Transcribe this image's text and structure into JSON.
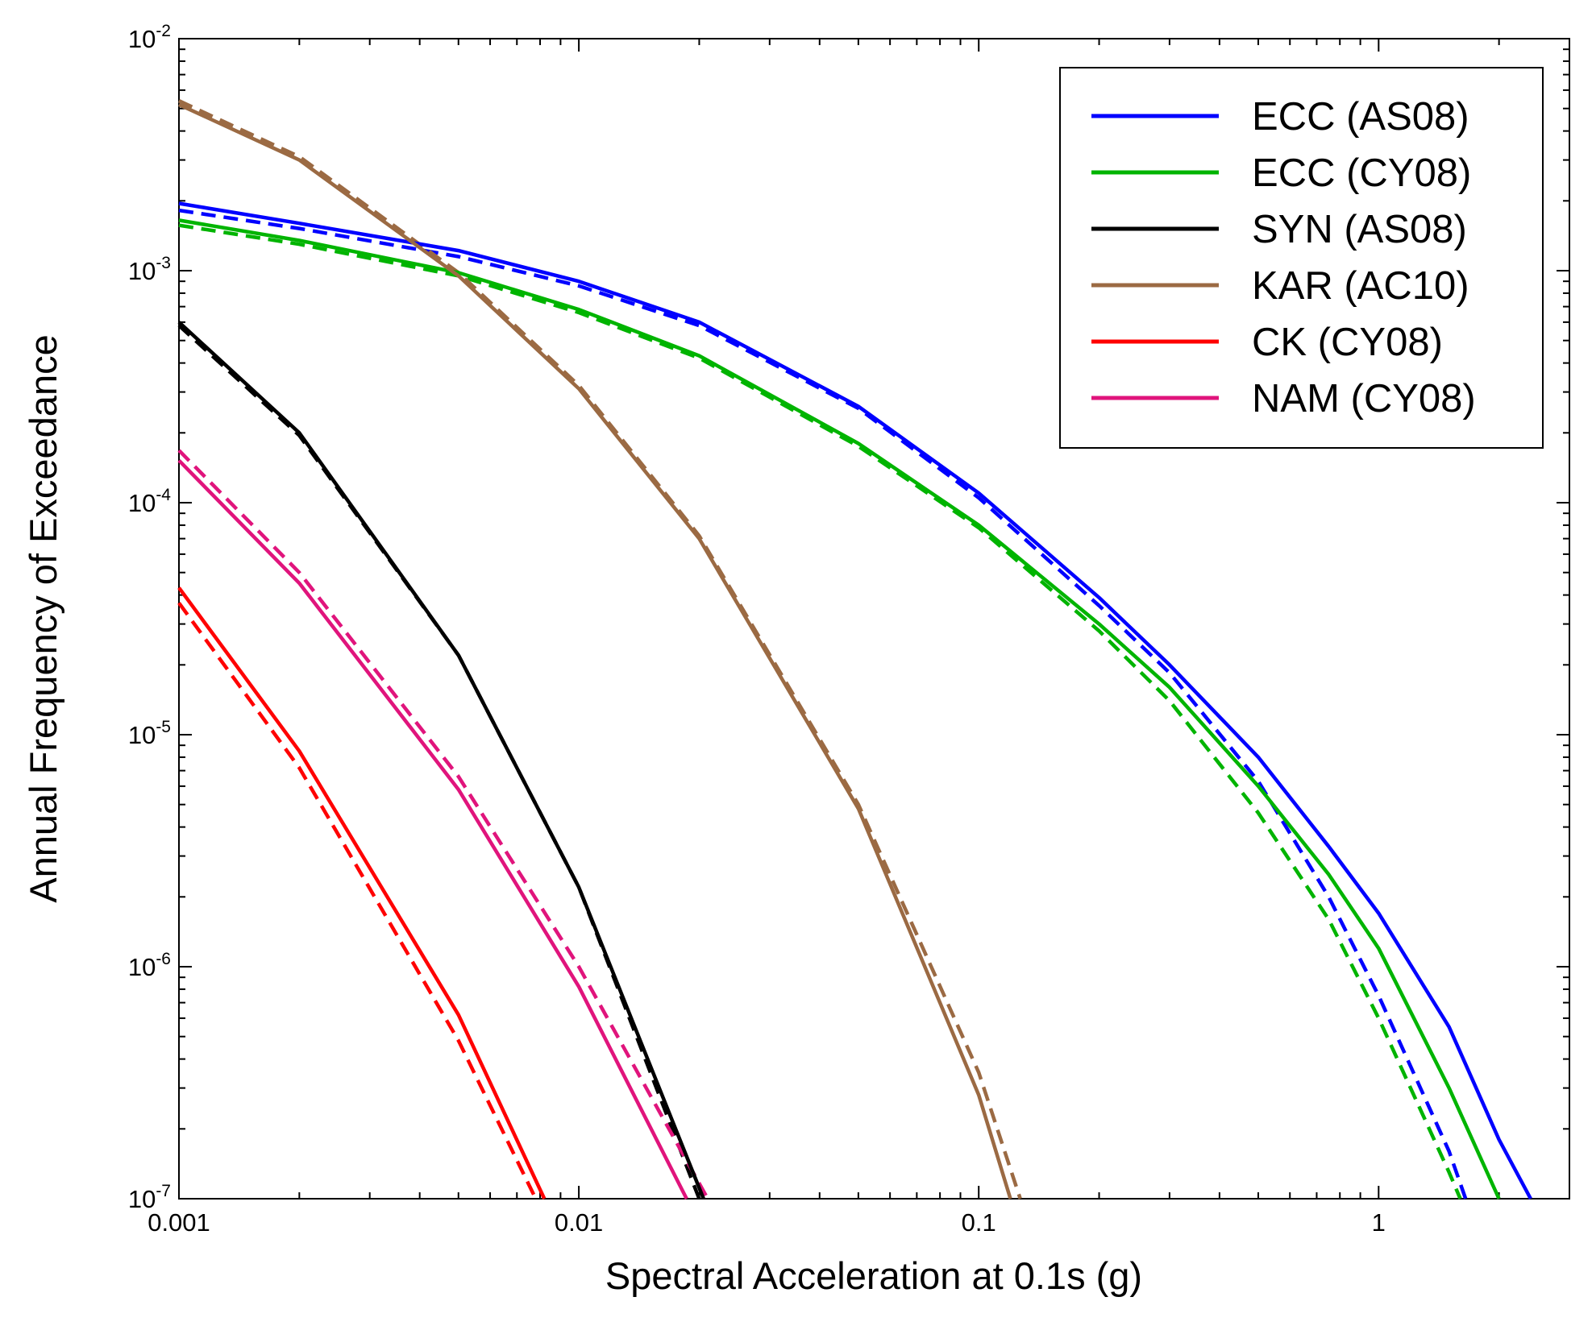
{
  "chart_data": {
    "type": "line",
    "xlabel": "Spectral Acceleration at 0.1s (g)",
    "ylabel": "Annual Frequency of Exceedance",
    "xscale": "log",
    "yscale": "log",
    "xlim": [
      0.001,
      3
    ],
    "ylim": [
      1e-07,
      0.01
    ],
    "x_tick_labels": [
      "0.001",
      "0.01",
      "0.1",
      "1"
    ],
    "x_tick_values": [
      0.001,
      0.01,
      0.1,
      1
    ],
    "y_tick_values": [
      1e-07,
      1e-06,
      1e-05,
      0.0001,
      0.001,
      0.01
    ],
    "y_tick_labels": [
      {
        "base": "10",
        "exp": "-7"
      },
      {
        "base": "10",
        "exp": "-6"
      },
      {
        "base": "10",
        "exp": "-5"
      },
      {
        "base": "10",
        "exp": "-4"
      },
      {
        "base": "10",
        "exp": "-3"
      },
      {
        "base": "10",
        "exp": "-2"
      }
    ],
    "grid": false,
    "legend_position": "top-right",
    "legend_note": "solid and dashed line of each color drawn; only solid lines appear in legend",
    "series": [
      {
        "name": "ECC (AS08)",
        "color": "#0000ff",
        "solid": {
          "x": [
            0.001,
            0.002,
            0.005,
            0.01,
            0.02,
            0.05,
            0.1,
            0.2,
            0.3,
            0.5,
            0.75,
            1.0,
            1.5,
            2.0,
            2.4
          ],
          "y": [
            0.00195,
            0.0016,
            0.00122,
            0.0009,
            0.0006,
            0.00026,
            0.00011,
            3.9e-05,
            2e-05,
            8e-06,
            3.3e-06,
            1.7e-06,
            5.5e-07,
            1.8e-07,
            1e-07
          ]
        },
        "dashed": {
          "x": [
            0.001,
            0.002,
            0.005,
            0.01,
            0.02,
            0.05,
            0.1,
            0.2,
            0.3,
            0.5,
            0.75,
            1.0,
            1.5,
            1.65
          ],
          "y": [
            0.00182,
            0.00152,
            0.00115,
            0.00086,
            0.00058,
            0.000255,
            0.000105,
            3.6e-05,
            1.85e-05,
            6.3e-06,
            2e-06,
            7.5e-07,
            1.6e-07,
            1e-07
          ]
        }
      },
      {
        "name": "ECC (CY08)",
        "color": "#00b400",
        "solid": {
          "x": [
            0.001,
            0.002,
            0.005,
            0.01,
            0.02,
            0.05,
            0.1,
            0.2,
            0.3,
            0.5,
            0.75,
            1.0,
            1.5,
            2.0
          ],
          "y": [
            0.00165,
            0.00135,
            0.00098,
            0.00068,
            0.00043,
            0.00018,
            8e-05,
            3e-05,
            1.6e-05,
            6e-06,
            2.5e-06,
            1.2e-06,
            3e-07,
            1e-07
          ]
        },
        "dashed": {
          "x": [
            0.001,
            0.002,
            0.005,
            0.01,
            0.02,
            0.05,
            0.1,
            0.2,
            0.3,
            0.5,
            0.75,
            1.0,
            1.5,
            1.6
          ],
          "y": [
            0.00157,
            0.0013,
            0.00095,
            0.00066,
            0.00042,
            0.000175,
            7.8e-05,
            2.8e-05,
            1.4e-05,
            4.6e-06,
            1.6e-06,
            6e-07,
            1.3e-07,
            1e-07
          ]
        }
      },
      {
        "name": "SYN (AS08)",
        "color": "#000000",
        "solid": {
          "x": [
            0.001,
            0.002,
            0.005,
            0.01,
            0.0205
          ],
          "y": [
            0.0006,
            0.0002,
            2.2e-05,
            2.2e-06,
            1e-07
          ]
        },
        "dashed": {
          "x": [
            0.001,
            0.002,
            0.005,
            0.01,
            0.02
          ],
          "y": [
            0.00058,
            0.000195,
            2.2e-05,
            2.2e-06,
            1e-07
          ]
        }
      },
      {
        "name": "KAR (AC10)",
        "color": "#9b6a43",
        "solid": {
          "x": [
            0.001,
            0.002,
            0.005,
            0.01,
            0.02,
            0.05,
            0.1,
            0.12
          ],
          "y": [
            0.0052,
            0.003,
            0.00095,
            0.00031,
            7e-05,
            4.8e-06,
            2.8e-07,
            1e-07
          ]
        },
        "dashed": {
          "x": [
            0.001,
            0.002,
            0.005,
            0.01,
            0.02,
            0.05,
            0.1,
            0.127
          ],
          "y": [
            0.0054,
            0.0031,
            0.00098,
            0.00032,
            7.2e-05,
            5e-06,
            3.5e-07,
            1e-07
          ]
        }
      },
      {
        "name": "CK (CY08)",
        "color": "#ff0000",
        "solid": {
          "x": [
            0.001,
            0.002,
            0.005,
            0.0082
          ],
          "y": [
            4.3e-05,
            8.5e-06,
            6.2e-07,
            1e-07
          ]
        },
        "dashed": {
          "x": [
            0.001,
            0.002,
            0.005,
            0.0078
          ],
          "y": [
            3.7e-05,
            7.2e-06,
            4.8e-07,
            1e-07
          ]
        }
      },
      {
        "name": "NAM (CY08)",
        "color": "#e0147c",
        "solid": {
          "x": [
            0.001,
            0.002,
            0.005,
            0.01,
            0.0186
          ],
          "y": [
            0.000152,
            4.5e-05,
            5.8e-06,
            8.2e-07,
            1e-07
          ]
        },
        "dashed": {
          "x": [
            0.001,
            0.002,
            0.005,
            0.01,
            0.021
          ],
          "y": [
            0.000168,
            5e-05,
            6.6e-06,
            1e-06,
            1e-07
          ]
        }
      }
    ]
  }
}
